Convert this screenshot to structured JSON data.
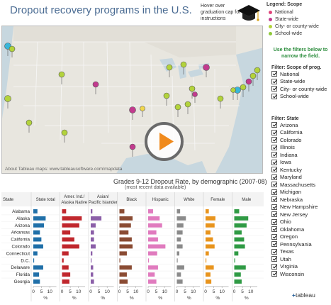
{
  "header": {
    "title": "Dropout recovery programs in the U.S.",
    "hover_note": "Hover over graduation cap for instructions"
  },
  "legend": {
    "title": "Legend: Scope",
    "items": [
      {
        "label": "National",
        "color": "#e0457b"
      },
      {
        "label": "State-wide",
        "color": "#c23b8e"
      },
      {
        "label": "City- or county-wide",
        "color": "#b3d33c"
      },
      {
        "label": "School-wide",
        "color": "#8fc93a"
      }
    ]
  },
  "map": {
    "credit": "About Tableau maps: www.tableausoftware.com/mapdata",
    "play_icon": "play-button-icon"
  },
  "filters": {
    "hint": "Use the filters below to narrow the field.",
    "scope": {
      "title": "Filter: Scope of prog.",
      "options": [
        "National",
        "State-wide",
        "City- or county-wide",
        "School-wide"
      ]
    },
    "state": {
      "title": "Filter: State",
      "options": [
        "Arizona",
        "California",
        "Colorado",
        "Illinois",
        "Indiana",
        "Iowa",
        "Kentucky",
        "Maryland",
        "Massachusetts",
        "Michigan",
        "Nebraska",
        "New Hampshire",
        "New Jersey",
        "Ohio",
        "Oklahoma",
        "Oregon",
        "Pennsylvania",
        "Texas",
        "Utah",
        "Virginia",
        "Wisconsin"
      ]
    }
  },
  "chart_data": {
    "type": "bar",
    "title": "Grades 9-12 Dropout Rate, by demographic (2007-08)",
    "subtitle": "(most recent data available)",
    "row_header": "State",
    "categories": [
      "Alabama",
      "Alaska",
      "Arizona",
      "Arkansas",
      "California",
      "Colorado",
      "Connecticut",
      "D.C.",
      "Delaware",
      "Florida",
      "Georgia"
    ],
    "xticks": [
      "0",
      "5",
      "10"
    ],
    "xunit": "%",
    "xlim": [
      0,
      14
    ],
    "series": [
      {
        "name": "State total",
        "color": "#1f6fa8",
        "values": [
          2.5,
          7.5,
          6.5,
          4.0,
          4.9,
          6.0,
          2.5,
          0.5,
          6.0,
          3.5,
          4.0
        ]
      },
      {
        "name": "Amer. Ind./ Alaska Native",
        "color": "#c0272d",
        "values": [
          2.5,
          12.0,
          10.5,
          5.0,
          7.5,
          10.5,
          4.0,
          1.0,
          4.0,
          5.0,
          4.5
        ]
      },
      {
        "name": "Asian/Pacific Islander",
        "color": "#8b5fa8",
        "values": [
          1.0,
          6.5,
          3.0,
          2.0,
          2.0,
          3.0,
          1.0,
          0.5,
          1.5,
          1.5,
          2.0
        ]
      },
      {
        "name": "Black",
        "color": "#8a4b33",
        "values": [
          3.0,
          8.0,
          7.0,
          5.5,
          7.5,
          8.0,
          4.5,
          0.5,
          7.5,
          4.5,
          5.0
        ]
      },
      {
        "name": "Hispanic",
        "color": "#e07bbe",
        "values": [
          3.0,
          7.0,
          8.5,
          5.0,
          6.0,
          10.5,
          5.5,
          0.5,
          6.0,
          4.0,
          5.0
        ]
      },
      {
        "name": "White",
        "color": "#8a8a8a",
        "values": [
          2.0,
          5.5,
          4.0,
          3.5,
          2.5,
          3.5,
          1.5,
          0.5,
          4.5,
          2.5,
          3.5
        ]
      },
      {
        "name": "Female",
        "color": "#e8941d",
        "values": [
          2.0,
          6.0,
          5.5,
          3.0,
          4.5,
          5.5,
          2.0,
          0.5,
          5.0,
          3.0,
          3.5
        ]
      },
      {
        "name": "Male",
        "color": "#2f9a44",
        "values": [
          3.0,
          8.5,
          7.5,
          4.5,
          6.0,
          6.5,
          2.5,
          0.5,
          7.0,
          4.0,
          4.5
        ]
      }
    ]
  },
  "footer": {
    "logo_prefix": "+",
    "logo_text": "tableau"
  }
}
